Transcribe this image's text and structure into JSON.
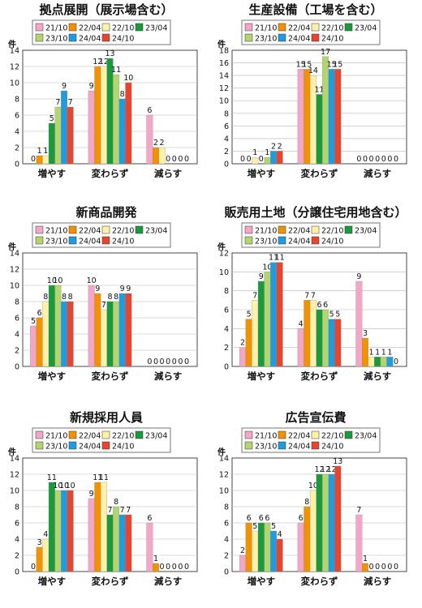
{
  "legend_order": [
    "21/10",
    "22/04",
    "22/10",
    "23/04",
    "23/10",
    "24/04",
    "24/10"
  ],
  "series_colors": [
    "#f4a6c8",
    "#f39200",
    "#fff1a8",
    "#1a9a3c",
    "#b2d56e",
    "#1f9be0",
    "#e8452c"
  ],
  "chart_data": [
    {
      "type": "bar",
      "title": "拠点展開（展示場含む）",
      "ylabel": "件",
      "ylim": [
        0,
        14
      ],
      "yticks": [
        "0",
        "2",
        "4",
        "6",
        "8",
        "10",
        "12",
        "14"
      ],
      "categories": [
        "増やす",
        "変わらず",
        "減らす"
      ],
      "series": [
        {
          "name": "21/10",
          "values": [
            0,
            9,
            6
          ]
        },
        {
          "name": "22/04",
          "values": [
            1,
            12,
            2
          ]
        },
        {
          "name": "22/10",
          "values": [
            1,
            12,
            2
          ]
        },
        {
          "name": "23/04",
          "values": [
            5,
            13,
            0
          ]
        },
        {
          "name": "23/10",
          "values": [
            7,
            11,
            0
          ]
        },
        {
          "name": "24/04",
          "values": [
            9,
            8,
            0
          ]
        },
        {
          "name": "24/10",
          "values": [
            7,
            10,
            0
          ]
        }
      ]
    },
    {
      "type": "bar",
      "title": "生産設備（工場を含む）",
      "ylabel": "件",
      "ylim": [
        0,
        18
      ],
      "yticks": [
        "0",
        "2",
        "4",
        "6",
        "8",
        "10",
        "12",
        "14",
        "16",
        "18"
      ],
      "categories": [
        "増やす",
        "変わらず",
        "減らす"
      ],
      "series": [
        {
          "name": "21/10",
          "values": [
            0,
            15,
            0
          ]
        },
        {
          "name": "22/04",
          "values": [
            0,
            15,
            0
          ]
        },
        {
          "name": "22/10",
          "values": [
            1,
            14,
            0
          ]
        },
        {
          "name": "23/04",
          "values": [
            0,
            11,
            0
          ]
        },
        {
          "name": "23/10",
          "values": [
            1,
            17,
            0
          ]
        },
        {
          "name": "24/04",
          "values": [
            2,
            15,
            0
          ]
        },
        {
          "name": "24/10",
          "values": [
            2,
            15,
            0
          ]
        }
      ]
    },
    {
      "type": "bar",
      "title": "新商品開発",
      "ylabel": "件",
      "ylim": [
        0,
        14
      ],
      "yticks": [
        "0",
        "2",
        "4",
        "6",
        "8",
        "10",
        "12",
        "14"
      ],
      "categories": [
        "増やす",
        "変わらず",
        "減らす"
      ],
      "series": [
        {
          "name": "21/10",
          "values": [
            5,
            10,
            0
          ]
        },
        {
          "name": "22/04",
          "values": [
            6,
            9,
            0
          ]
        },
        {
          "name": "22/10",
          "values": [
            8,
            7,
            0
          ]
        },
        {
          "name": "23/04",
          "values": [
            10,
            8,
            0
          ]
        },
        {
          "name": "23/10",
          "values": [
            10,
            8,
            0
          ]
        },
        {
          "name": "24/04",
          "values": [
            8,
            9,
            0
          ]
        },
        {
          "name": "24/10",
          "values": [
            8,
            9,
            0
          ]
        }
      ]
    },
    {
      "type": "bar",
      "title": "販売用土地（分譲住宅用地含む）",
      "ylabel": "件",
      "ylim": [
        0,
        12
      ],
      "yticks": [
        "0",
        "2",
        "4",
        "6",
        "8",
        "10",
        "12"
      ],
      "categories": [
        "増やす",
        "変わらず",
        "減らす"
      ],
      "series": [
        {
          "name": "21/10",
          "values": [
            2,
            4,
            9
          ]
        },
        {
          "name": "22/04",
          "values": [
            5,
            7,
            3
          ]
        },
        {
          "name": "22/10",
          "values": [
            7,
            7,
            1
          ]
        },
        {
          "name": "23/04",
          "values": [
            9,
            6,
            1
          ]
        },
        {
          "name": "23/10",
          "values": [
            10,
            6,
            1
          ]
        },
        {
          "name": "24/04",
          "values": [
            11,
            5,
            1
          ]
        },
        {
          "name": "24/10",
          "values": [
            11,
            5,
            0
          ]
        }
      ]
    },
    {
      "type": "bar",
      "title": "新規採用人員",
      "ylabel": "件",
      "ylim": [
        0,
        14
      ],
      "yticks": [
        "0",
        "2",
        "4",
        "6",
        "8",
        "10",
        "12",
        "14"
      ],
      "categories": [
        "増やす",
        "変わらず",
        "減らす"
      ],
      "series": [
        {
          "name": "21/10",
          "values": [
            0,
            9,
            6
          ]
        },
        {
          "name": "22/04",
          "values": [
            3,
            11,
            1
          ]
        },
        {
          "name": "22/10",
          "values": [
            4,
            11,
            0
          ]
        },
        {
          "name": "23/04",
          "values": [
            11,
            7,
            0
          ]
        },
        {
          "name": "23/10",
          "values": [
            10,
            8,
            0
          ]
        },
        {
          "name": "24/04",
          "values": [
            10,
            7,
            0
          ]
        },
        {
          "name": "24/10",
          "values": [
            10,
            7,
            0
          ]
        }
      ]
    },
    {
      "type": "bar",
      "title": "広告宣伝費",
      "ylabel": "件",
      "ylim": [
        0,
        14
      ],
      "yticks": [
        "0",
        "2",
        "4",
        "6",
        "8",
        "10",
        "12",
        "14"
      ],
      "categories": [
        "増やす",
        "変わらず",
        "減らす"
      ],
      "series": [
        {
          "name": "21/10",
          "values": [
            2,
            6,
            7
          ]
        },
        {
          "name": "22/04",
          "values": [
            6,
            8,
            1
          ]
        },
        {
          "name": "22/10",
          "values": [
            5,
            10,
            0
          ]
        },
        {
          "name": "23/04",
          "values": [
            6,
            12,
            0
          ]
        },
        {
          "name": "23/10",
          "values": [
            6,
            12,
            0
          ]
        },
        {
          "name": "24/04",
          "values": [
            5,
            12,
            0
          ]
        },
        {
          "name": "24/10",
          "values": [
            4,
            13,
            0
          ]
        }
      ]
    }
  ]
}
